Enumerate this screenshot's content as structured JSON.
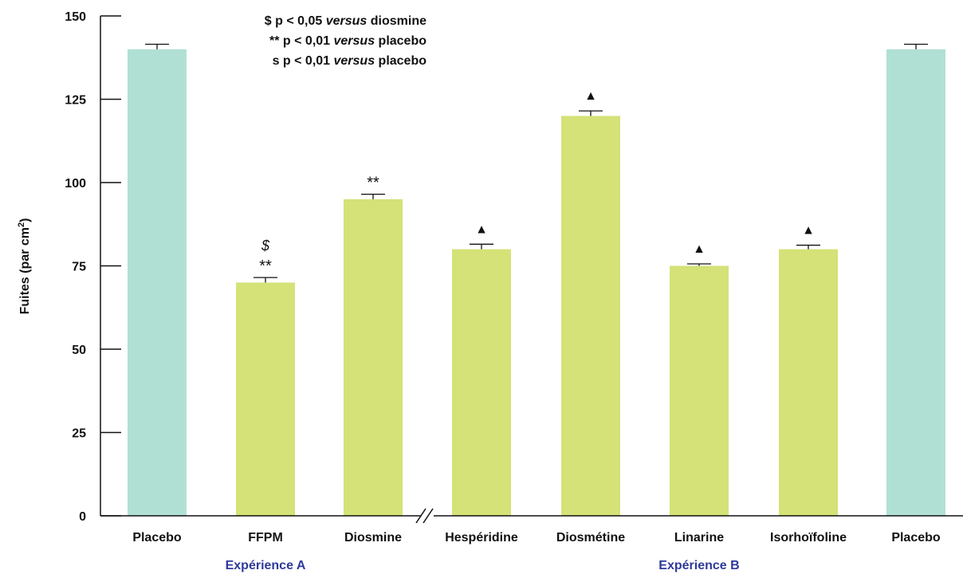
{
  "chart_data": {
    "type": "bar",
    "ylabel": "Fuites (par cm",
    "ylabel_sup": "2",
    "ylabel_close": ")",
    "ylim": [
      0,
      150
    ],
    "yticks": [
      "0",
      "25",
      "50",
      "75",
      "100",
      "125",
      "150"
    ],
    "categories": [
      "Placebo",
      "FFPM",
      "Diosmine",
      "Hespéridine",
      "Diosmétine",
      "Linarine",
      "Isorhoïfoline",
      "Placebo"
    ],
    "values": [
      140,
      70,
      95,
      80,
      120,
      75,
      80,
      140
    ],
    "error": [
      1.5,
      1.5,
      1.5,
      1.5,
      1.5,
      0.6,
      1.2,
      1.5
    ],
    "bar_colors": [
      "#b0e0d4",
      "#d4e277",
      "#d4e277",
      "#d4e277",
      "#d4e277",
      "#d4e277",
      "#d4e277",
      "#b0e0d4"
    ],
    "markers": [
      {
        "index": 1,
        "symbols": [
          "$",
          "**"
        ]
      },
      {
        "index": 2,
        "symbols": [
          "**"
        ]
      },
      {
        "index": 3,
        "symbols": [
          "▲"
        ]
      },
      {
        "index": 4,
        "symbols": [
          "▲"
        ]
      },
      {
        "index": 5,
        "symbols": [
          "▲"
        ]
      },
      {
        "index": 6,
        "symbols": [
          "▲"
        ]
      }
    ],
    "groups": [
      {
        "label": "Expérience A"
      },
      {
        "label": "Expérience B"
      }
    ],
    "legend": [
      {
        "symbol": "$",
        "text": "p < 0,05",
        "italic": "versus",
        "tail": "diosmine"
      },
      {
        "symbol": "**",
        "text": "p < 0,01",
        "italic": "versus",
        "tail": "placebo"
      },
      {
        "symbol": "s",
        "text": "p < 0,01",
        "italic": "versus",
        "tail": "placebo"
      }
    ],
    "axis_break_after_index": 2,
    "legend_position": "top-center",
    "grid": false
  }
}
